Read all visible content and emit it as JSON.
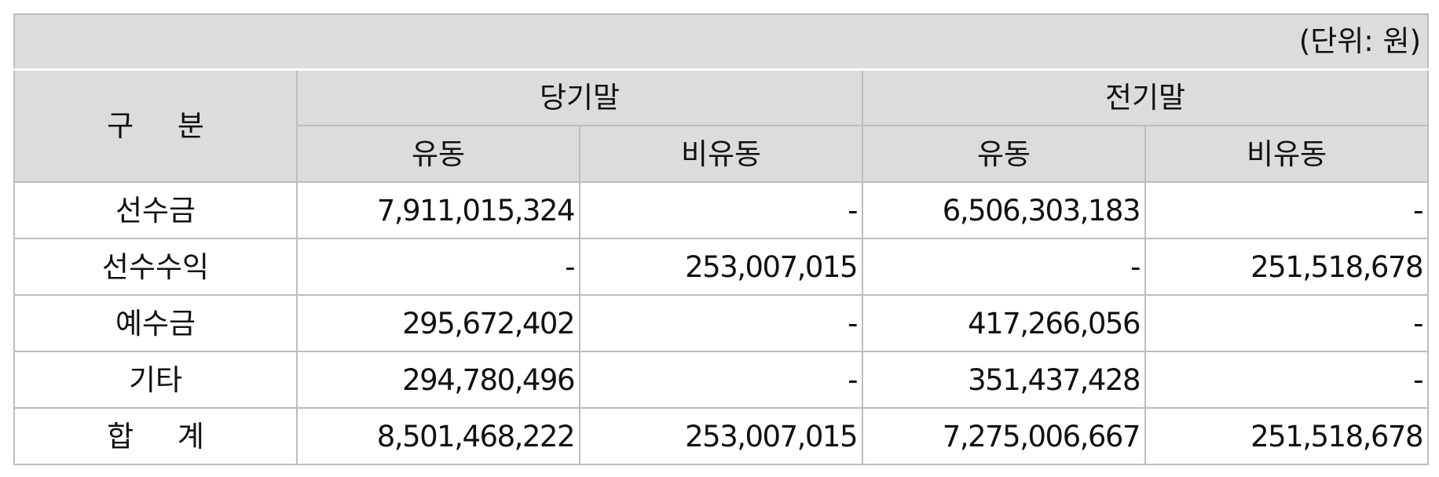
{
  "unit": "(단위: 원)",
  "header": {
    "category": "구 분",
    "current_period": "당기말",
    "prior_period": "전기말",
    "current": "유동",
    "noncurrent": "비유동"
  },
  "rows": [
    {
      "label": "선수금",
      "cur_current": "7,911,015,324",
      "cur_noncurrent": "-",
      "prior_current": "6,506,303,183",
      "prior_noncurrent": "-"
    },
    {
      "label": "선수수익",
      "cur_current": "-",
      "cur_noncurrent": "253,007,015",
      "prior_current": "-",
      "prior_noncurrent": "251,518,678"
    },
    {
      "label": "예수금",
      "cur_current": "295,672,402",
      "cur_noncurrent": "-",
      "prior_current": "417,266,056",
      "prior_noncurrent": "-"
    },
    {
      "label": "기타",
      "cur_current": "294,780,496",
      "cur_noncurrent": "-",
      "prior_current": "351,437,428",
      "prior_noncurrent": "-"
    },
    {
      "label": "합 계",
      "cur_current": "8,501,468,222",
      "cur_noncurrent": "253,007,015",
      "prior_current": "7,275,006,667",
      "prior_noncurrent": "251,518,678"
    }
  ]
}
